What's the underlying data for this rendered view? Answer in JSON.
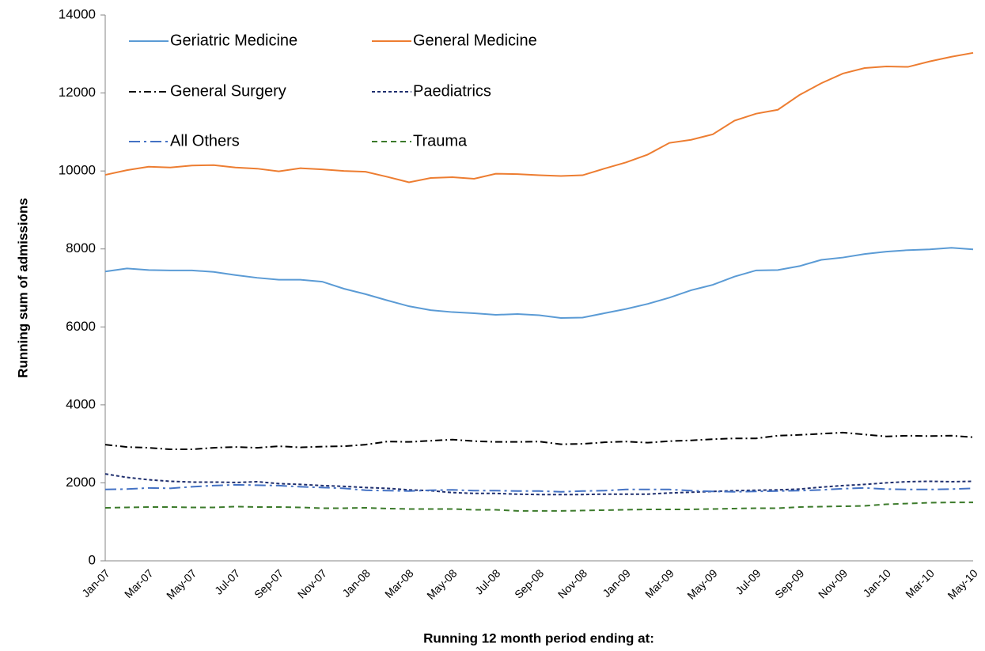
{
  "chart_data": {
    "type": "line",
    "y_label": "Running sum of admissions",
    "x_label": "Running 12 month period ending at:",
    "categories": [
      "Jan-07",
      null,
      "Mar-07",
      null,
      "May-07",
      null,
      "Jul-07",
      null,
      "Sep-07",
      null,
      "Nov-07",
      null,
      "Jan-08",
      null,
      "Mar-08",
      null,
      "May-08",
      null,
      "Jul-08",
      null,
      "Sep-08",
      null,
      "Nov-08",
      null,
      "Jan-09",
      null,
      "Mar-09",
      null,
      "May-09",
      null,
      "Jul-09",
      null,
      "Sep-09",
      null,
      "Nov-09",
      null,
      "Jan-10",
      null,
      "Mar-10",
      null,
      "May-10"
    ],
    "ylim": [
      0,
      14000
    ],
    "yticks": [
      0,
      2000,
      4000,
      6000,
      8000,
      10000,
      12000,
      14000
    ],
    "grid": false,
    "legend": "top-left",
    "series": [
      {
        "name": "Geriatric Medicine",
        "color": "#5b9bd5",
        "dash": "solid",
        "values": [
          7420,
          7500,
          7460,
          7450,
          7450,
          7410,
          7330,
          7260,
          7210,
          7210,
          7160,
          6980,
          6840,
          6680,
          6530,
          6430,
          6380,
          6350,
          6310,
          6330,
          6300,
          6230,
          6240,
          6350,
          6460,
          6590,
          6750,
          6940,
          7080,
          7290,
          7450,
          7460,
          7560,
          7720,
          7780,
          7870,
          7930,
          7970,
          7990,
          8030,
          7990
        ]
      },
      {
        "name": "General Medicine",
        "color": "#ed7d31",
        "dash": "solid",
        "values": [
          9900,
          10020,
          10110,
          10090,
          10140,
          10150,
          10090,
          10060,
          9990,
          10070,
          10040,
          10000,
          9980,
          9850,
          9710,
          9820,
          9840,
          9800,
          9930,
          9920,
          9890,
          9870,
          9890,
          10060,
          10220,
          10420,
          10720,
          10800,
          10940,
          11290,
          11470,
          11570,
          11950,
          12250,
          12500,
          12640,
          12680,
          12670,
          12810,
          12930,
          13030
        ]
      },
      {
        "name": "General Surgery",
        "color": "#000000",
        "dash": "dash-dot",
        "values": [
          2980,
          2920,
          2900,
          2860,
          2860,
          2900,
          2920,
          2900,
          2940,
          2910,
          2930,
          2940,
          2980,
          3060,
          3050,
          3080,
          3110,
          3070,
          3050,
          3050,
          3060,
          2990,
          3000,
          3040,
          3060,
          3030,
          3070,
          3090,
          3120,
          3140,
          3140,
          3210,
          3230,
          3260,
          3290,
          3240,
          3190,
          3210,
          3200,
          3210,
          3170
        ]
      },
      {
        "name": "Paediatrics",
        "color": "#1f2f6e",
        "dash": "short-dash",
        "values": [
          2230,
          2140,
          2080,
          2040,
          2020,
          2020,
          2010,
          2030,
          1980,
          1960,
          1930,
          1910,
          1880,
          1860,
          1820,
          1800,
          1750,
          1730,
          1730,
          1710,
          1700,
          1700,
          1700,
          1710,
          1710,
          1710,
          1740,
          1760,
          1780,
          1800,
          1810,
          1820,
          1840,
          1890,
          1930,
          1960,
          2000,
          2030,
          2040,
          2030,
          2040
        ]
      },
      {
        "name": "All Others",
        "color": "#4472c4",
        "dash": "long-dash-dot",
        "values": [
          1830,
          1840,
          1870,
          1860,
          1900,
          1930,
          1950,
          1940,
          1930,
          1900,
          1880,
          1860,
          1810,
          1800,
          1790,
          1810,
          1820,
          1800,
          1800,
          1790,
          1790,
          1770,
          1790,
          1800,
          1830,
          1830,
          1830,
          1800,
          1780,
          1770,
          1780,
          1790,
          1800,
          1820,
          1850,
          1870,
          1840,
          1830,
          1830,
          1840,
          1860
        ]
      },
      {
        "name": "Trauma",
        "color": "#3b7a2a",
        "dash": "dash",
        "values": [
          1360,
          1370,
          1380,
          1380,
          1370,
          1370,
          1390,
          1380,
          1380,
          1370,
          1350,
          1350,
          1360,
          1340,
          1330,
          1330,
          1330,
          1310,
          1310,
          1280,
          1280,
          1280,
          1290,
          1300,
          1310,
          1320,
          1320,
          1320,
          1330,
          1340,
          1350,
          1350,
          1380,
          1390,
          1400,
          1410,
          1450,
          1470,
          1490,
          1500,
          1500
        ]
      }
    ]
  }
}
